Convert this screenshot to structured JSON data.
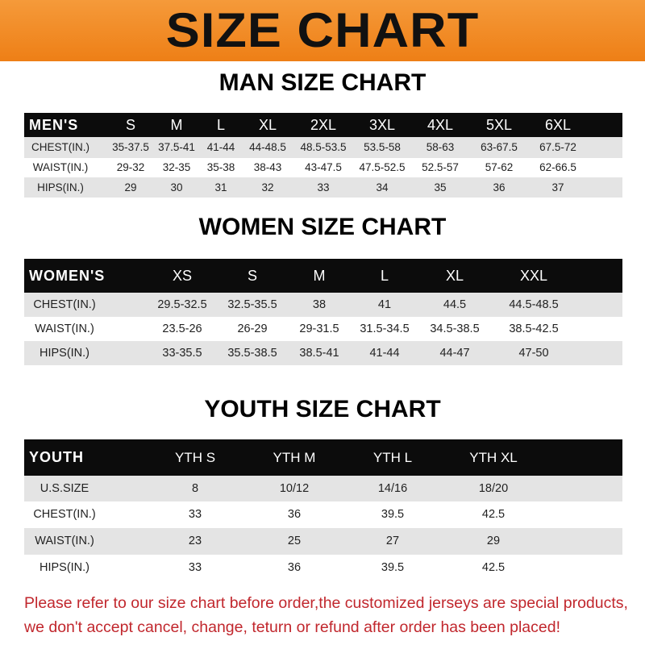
{
  "title": "SIZE CHART",
  "men": {
    "title": "MAN SIZE CHART",
    "headers": [
      "MEN'S",
      "S",
      "M",
      "L",
      "XL",
      "2XL",
      "3XL",
      "4XL",
      "5XL",
      "6XL"
    ],
    "rows": [
      [
        "CHEST(IN.)",
        "35-37.5",
        "37.5-41",
        "41-44",
        "44-48.5",
        "48.5-53.5",
        "53.5-58",
        "58-63",
        "63-67.5",
        "67.5-72"
      ],
      [
        "WAIST(IN.)",
        "29-32",
        "32-35",
        "35-38",
        "38-43",
        "43-47.5",
        "47.5-52.5",
        "52.5-57",
        "57-62",
        "62-66.5"
      ],
      [
        "HIPS(IN.)",
        "29",
        "30",
        "31",
        "32",
        "33",
        "34",
        "35",
        "36",
        "37"
      ]
    ]
  },
  "women": {
    "title": "WOMEN SIZE CHART",
    "headers": [
      "WOMEN'S",
      "XS",
      "S",
      "M",
      "L",
      "XL",
      "XXL"
    ],
    "rows": [
      [
        "CHEST(IN.)",
        "29.5-32.5",
        "32.5-35.5",
        "38",
        "41",
        "44.5",
        "44.5-48.5"
      ],
      [
        "WAIST(IN.)",
        "23.5-26",
        "26-29",
        "29-31.5",
        "31.5-34.5",
        "34.5-38.5",
        "38.5-42.5"
      ],
      [
        "HIPS(IN.)",
        "33-35.5",
        "35.5-38.5",
        "38.5-41",
        "41-44",
        "44-47",
        "47-50"
      ]
    ]
  },
  "youth": {
    "title": "YOUTH SIZE CHART",
    "headers": [
      "YOUTH",
      "YTH S",
      "YTH M",
      "YTH L",
      "YTH XL"
    ],
    "rows": [
      [
        "U.S.SIZE",
        "8",
        "10/12",
        "14/16",
        "18/20"
      ],
      [
        "CHEST(IN.)",
        "33",
        "36",
        "39.5",
        "42.5"
      ],
      [
        "WAIST(IN.)",
        "23",
        "25",
        "27",
        "29"
      ],
      [
        "HIPS(IN.)",
        "33",
        "36",
        "39.5",
        "42.5"
      ]
    ]
  },
  "note": {
    "line1": "Please refer to our size chart before order,the customized jerseys are special products,",
    "line2": "we don't accept cancel, change, teturn or refund after order has been placed!"
  },
  "colors": {
    "banner": "#ee7f16",
    "header_row": "#0c0c0c",
    "stripe": "#e4e4e4",
    "note": "#c1272d"
  }
}
